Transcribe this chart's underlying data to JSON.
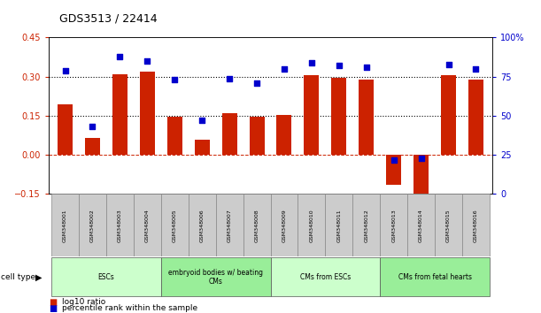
{
  "title": "GDS3513 / 22414",
  "samples": [
    "GSM348001",
    "GSM348002",
    "GSM348003",
    "GSM348004",
    "GSM348005",
    "GSM348006",
    "GSM348007",
    "GSM348008",
    "GSM348009",
    "GSM348010",
    "GSM348011",
    "GSM348012",
    "GSM348013",
    "GSM348014",
    "GSM348015",
    "GSM348016"
  ],
  "log10_ratio": [
    0.195,
    0.065,
    0.31,
    0.32,
    0.145,
    0.06,
    0.16,
    0.147,
    0.155,
    0.305,
    0.295,
    0.29,
    -0.115,
    -0.165,
    0.305,
    0.29
  ],
  "percentile_rank": [
    79,
    43,
    88,
    85,
    73,
    47,
    74,
    71,
    80,
    84,
    82,
    81,
    22,
    23,
    83,
    80
  ],
  "ylim_left": [
    -0.15,
    0.45
  ],
  "ylim_right": [
    0,
    100
  ],
  "yticks_left": [
    -0.15,
    0,
    0.15,
    0.3,
    0.45
  ],
  "yticks_right": [
    0,
    25,
    50,
    75,
    100
  ],
  "hlines": [
    0.15,
    0.3
  ],
  "bar_color": "#cc2200",
  "dot_color": "#0000cc",
  "zero_line_color": "#cc2200",
  "cell_groups": [
    {
      "label": "ESCs",
      "start": 0,
      "end": 3,
      "color": "#ccffcc"
    },
    {
      "label": "embryoid bodies w/ beating\nCMs",
      "start": 4,
      "end": 7,
      "color": "#99ee99"
    },
    {
      "label": "CMs from ESCs",
      "start": 8,
      "end": 11,
      "color": "#ccffcc"
    },
    {
      "label": "CMs from fetal hearts",
      "start": 12,
      "end": 15,
      "color": "#99ee99"
    }
  ],
  "legend_items": [
    {
      "color": "#cc2200",
      "label": "log10 ratio"
    },
    {
      "color": "#0000cc",
      "label": "percentile rank within the sample"
    }
  ],
  "bg_color": "#ffffff",
  "tick_label_color_left": "#cc2200",
  "tick_label_color_right": "#0000cc",
  "sample_box_color": "#cccccc"
}
